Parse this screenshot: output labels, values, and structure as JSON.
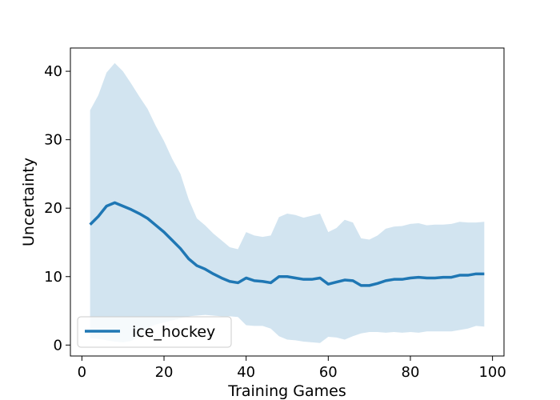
{
  "chart_data": {
    "type": "line",
    "xlabel": "Training Games",
    "ylabel": "Uncertainty",
    "xlim": [
      -2.8,
      102.8
    ],
    "ylim": [
      -1.6,
      43.4
    ],
    "xticks": [
      0,
      20,
      40,
      60,
      80,
      100
    ],
    "yticks": [
      0,
      10,
      20,
      30,
      40
    ],
    "grid": false,
    "legend": {
      "placement": "lower-left"
    },
    "series": [
      {
        "name": "ice_hockey",
        "color": "#1f77b4",
        "band_color": "#1f77b4",
        "x": [
          2,
          4,
          6,
          8,
          10,
          12,
          14,
          16,
          18,
          20,
          22,
          24,
          26,
          28,
          30,
          32,
          34,
          36,
          38,
          40,
          42,
          44,
          46,
          48,
          50,
          52,
          54,
          56,
          58,
          60,
          62,
          64,
          66,
          68,
          70,
          72,
          74,
          76,
          78,
          80,
          82,
          84,
          86,
          88,
          90,
          92,
          94,
          96,
          98
        ],
        "y": [
          17.6,
          18.8,
          20.3,
          20.8,
          20.3,
          19.8,
          19.2,
          18.5,
          17.5,
          16.5,
          15.3,
          14.1,
          12.6,
          11.6,
          11.1,
          10.4,
          9.8,
          9.3,
          9.1,
          9.8,
          9.4,
          9.3,
          9.1,
          10.0,
          10.0,
          9.8,
          9.6,
          9.6,
          9.8,
          8.9,
          9.2,
          9.5,
          9.4,
          8.7,
          8.7,
          9.0,
          9.4,
          9.6,
          9.6,
          9.8,
          9.9,
          9.8,
          9.8,
          9.9,
          9.9,
          10.2,
          10.2,
          10.4,
          10.4
        ],
        "upper": [
          34.3,
          36.5,
          39.8,
          41.2,
          40.0,
          38.2,
          36.3,
          34.5,
          32.0,
          29.8,
          27.2,
          25.0,
          21.3,
          18.5,
          17.5,
          16.3,
          15.3,
          14.3,
          14.0,
          16.5,
          16.0,
          15.8,
          16.0,
          18.7,
          19.2,
          19.0,
          18.6,
          18.9,
          19.2,
          16.5,
          17.1,
          18.3,
          17.9,
          15.6,
          15.4,
          16.0,
          17.0,
          17.3,
          17.4,
          17.7,
          17.8,
          17.5,
          17.6,
          17.6,
          17.7,
          18.0,
          17.9,
          17.9,
          18.0
        ],
        "lower": [
          1.0,
          0.9,
          0.7,
          0.5,
          0.4,
          0.6,
          1.2,
          2.5,
          3.0,
          3.3,
          3.6,
          3.9,
          4.2,
          4.3,
          4.4,
          4.3,
          4.2,
          4.2,
          4.1,
          2.9,
          2.8,
          2.8,
          2.4,
          1.3,
          0.8,
          0.7,
          0.5,
          0.4,
          0.3,
          1.2,
          1.1,
          0.8,
          1.3,
          1.7,
          1.9,
          1.9,
          1.8,
          1.9,
          1.8,
          1.9,
          1.8,
          2.0,
          2.0,
          2.0,
          2.0,
          2.2,
          2.4,
          2.8,
          2.7
        ]
      }
    ]
  }
}
